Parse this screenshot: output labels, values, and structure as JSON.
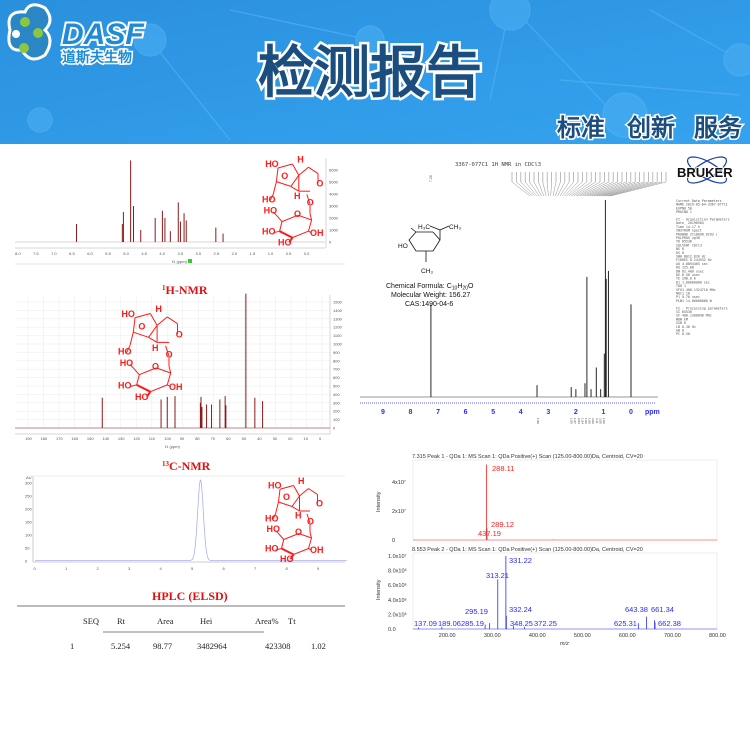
{
  "header": {
    "logo": {
      "en": "DASF",
      "cn": "道斯夫生物"
    },
    "title": "检测报告",
    "slogan": [
      "标准",
      "创新",
      "服务"
    ],
    "colors": {
      "background": "#2d97e4",
      "title": "#1b4d7e",
      "logo_green": "#8dc63f",
      "logo_blue": "#2b86c5"
    }
  },
  "structure": {
    "labels": [
      "HO",
      "H",
      "O",
      "O",
      "H",
      "HO",
      "O",
      "O",
      "HO",
      "HO",
      "HO",
      "OH"
    ],
    "color": "#ff1a1a"
  },
  "h_nmr": {
    "caption_sup": "1",
    "caption": "H-NMR",
    "x_ticks": [
      "8.0",
      "7.5",
      "7.0",
      "6.5",
      "6.0",
      "5.5",
      "5.0",
      "4.5",
      "4.0",
      "3.5",
      "3.0",
      "2.5",
      "2.0",
      "1.5",
      "1.0",
      "0.5",
      "0.0"
    ],
    "y_ticks": [
      "0",
      "1000",
      "2000",
      "3000",
      "4000",
      "5000",
      "6000"
    ],
    "x_label": "f1 (ppm)",
    "peaks": [
      [
        6.38,
        1500
      ],
      [
        5.11,
        1500
      ],
      [
        5.08,
        2500
      ],
      [
        4.88,
        6800
      ],
      [
        4.8,
        3000
      ],
      [
        4.6,
        1000
      ],
      [
        4.2,
        2000
      ],
      [
        4.0,
        2600
      ],
      [
        3.93,
        2000
      ],
      [
        3.78,
        900
      ],
      [
        3.56,
        3300
      ],
      [
        3.5,
        1700
      ],
      [
        3.4,
        2400
      ],
      [
        3.34,
        1800
      ],
      [
        2.52,
        1200
      ],
      [
        2.32,
        700
      ]
    ],
    "color": "#8b1a1a"
  },
  "c_nmr": {
    "caption_sup": "13",
    "caption": "C-NMR",
    "x_ticks": [
      "190",
      "180",
      "170",
      "160",
      "150",
      "140",
      "130",
      "120",
      "110",
      "100",
      "90",
      "80",
      "70",
      "60",
      "50",
      "40",
      "30",
      "20",
      "10",
      "0"
    ],
    "y_ticks": [
      "0",
      "100",
      "200",
      "300",
      "400",
      "500",
      "600",
      "700",
      "800",
      "900",
      "1000",
      "1100",
      "1200",
      "1300",
      "1400",
      "1500"
    ],
    "x_label": "f1 (ppm)",
    "peaks": [
      [
        142,
        360
      ],
      [
        104,
        340
      ],
      [
        100,
        370
      ],
      [
        95,
        380
      ],
      [
        78.6,
        300
      ],
      [
        78.2,
        370
      ],
      [
        77.6,
        250
      ],
      [
        74.6,
        280
      ],
      [
        71.4,
        280
      ],
      [
        66,
        340
      ],
      [
        62.6,
        380
      ],
      [
        62.1,
        270
      ],
      [
        49.2,
        1600
      ],
      [
        43.4,
        360
      ],
      [
        38.4,
        320
      ]
    ],
    "color": "#8b1a1a"
  },
  "hplc": {
    "title": "HPLC (ELSD)",
    "y_unit": "AU",
    "x_ticks": [
      "0",
      "1",
      "2",
      "3",
      "4",
      "5",
      "6",
      "7",
      "8",
      "9"
    ],
    "y_ticks": [
      "0",
      "50",
      "100",
      "150",
      "200",
      "250",
      "300"
    ],
    "peak": {
      "rt": 5.254,
      "height": 310
    },
    "color": "#aab0f0",
    "table": {
      "headers": [
        "SEQ",
        "Rt",
        "Area",
        "Hei",
        "Area%",
        "Tt"
      ],
      "rows": [
        [
          "1",
          "5.254",
          "98.77",
          "3482964",
          "423308",
          "1.02"
        ]
      ]
    }
  },
  "bruker_nmr": {
    "title": "3367-077C1 1H NMR in CDCl3",
    "brand": "BRUKER",
    "compound": {
      "formula_label": "Chemical Formula: ",
      "formula": [
        "C",
        "10",
        "H",
        "20",
        "O"
      ],
      "molecular_weight": "Molecular Weight: 156.27",
      "cas": "CAS:1490-04-6",
      "labels": {
        "h3c": "H₃C",
        "ch3_top": "CH₃",
        "ho": "HO",
        "ch3_bottom": "CH₃"
      }
    },
    "x_ticks": [
      "9",
      "8",
      "7",
      "6",
      "5",
      "4",
      "3",
      "2",
      "1",
      "0"
    ],
    "x_unit": "ppm",
    "top_peak_label": "7.26",
    "peaks": [
      [
        7.26,
        0.47
      ],
      [
        3.41,
        0.06
      ],
      [
        2.17,
        0.05
      ],
      [
        2.0,
        0.04
      ],
      [
        1.67,
        0.07
      ],
      [
        1.6,
        0.61
      ],
      [
        1.45,
        0.04
      ],
      [
        1.26,
        0.15
      ],
      [
        1.1,
        0.04
      ],
      [
        0.97,
        0.22
      ],
      [
        0.93,
        1.0
      ],
      [
        0.9,
        0.6
      ],
      [
        0.82,
        0.64
      ],
      [
        0.0,
        0.47
      ]
    ],
    "integrals": [
      "1.00",
      "1.05",
      "1.07",
      "2.03",
      "1.04",
      "1.06",
      "1.00",
      "3.06",
      "3.11",
      "3.05",
      "1.02"
    ],
    "params": [
      "Current Data Parameters",
      "NAME      2019-05-04-3367-077C1",
      "EXPNO                  50",
      "PROCNO                  1",
      "",
      "F2 - Acquisition Parameters",
      "Date_            20190504",
      "Time              14.17 h",
      "INSTRUM             spect",
      "PROBHD   Z116098_0293 (",
      "PULPROG              zg30",
      "TD                  65536",
      "SOLVENT             CDCl3",
      "NS                      8",
      "DS                      0",
      "SWH          8012.820 Hz",
      "FIDRES       0.244532 Hz",
      "AQ          4.0894465 sec",
      "RG                 125.08",
      "DW             62.400 usec",
      "DE               6.50 usec",
      "TE               298.0 K",
      "D1         1.00000000 sec",
      "TD0                     1",
      "SFO1      400.1324710 MHz",
      "NUC1                   1H",
      "P1               9.70 usec",
      "PLW1      14.00000000 W",
      "",
      "F2 - Processing parameters",
      "SI                  65536",
      "SF        400.1300090 MHz",
      "WDW                    EM",
      "SSB      0",
      "LB                0.30 Hz",
      "GB       0",
      "PC                   0.50"
    ]
  },
  "ms": {
    "x_label": "m/z",
    "y_label": "Intensity",
    "x_ticks": [
      "200.00",
      "300.00",
      "400.00",
      "500.00",
      "600.00",
      "700.00",
      "800.00"
    ],
    "top": {
      "header": "7.315 Peak 1 - QDa 1: MS Scan 1: QDa Positive(+) Scan (125.00-800.00)Da, Centroid, CV=20",
      "y_ticks": [
        "0",
        "2x10⁷",
        "4x10⁷"
      ],
      "color": "#ff2020",
      "peaks": [
        {
          "mz": 288.11,
          "i": 52000000.0,
          "label": "288.11"
        },
        {
          "mz": 289.12,
          "i": 8000000.0,
          "label": "289.12"
        },
        {
          "mz": 437.19,
          "i": 400000.0,
          "label": "437.19"
        }
      ]
    },
    "bottom": {
      "header": "8.553 Peak 2 - QDa 1: MS Scan 1: QDa Positive(+) Scan (125.00-800.00)Da, Centroid, CV=20",
      "y_ticks": [
        "0.0",
        "2.0x10⁶",
        "4.0x10⁶",
        "6.0x10⁶",
        "8.0x10⁶",
        "1.0x10⁷"
      ],
      "color": "#2a2aff",
      "peaks": [
        {
          "mz": 137.09,
          "i": 200000.0,
          "label": "137.09"
        },
        {
          "mz": 189.06,
          "i": 300000.0,
          "label": "189.06"
        },
        {
          "mz": 285.19,
          "i": 600000.0,
          "label": "285.19"
        },
        {
          "mz": 295.19,
          "i": 800000.0,
          "label": "295.19"
        },
        {
          "mz": 313.21,
          "i": 6800000.0,
          "label": "313.21"
        },
        {
          "mz": 331.22,
          "i": 10000000.0,
          "label": "331.22"
        },
        {
          "mz": 332.24,
          "i": 1800000.0,
          "label": "332.24"
        },
        {
          "mz": 348.25,
          "i": 400000.0,
          "label": "348.25"
        },
        {
          "mz": 372.25,
          "i": 300000.0,
          "label": "372.25"
        },
        {
          "mz": 625.31,
          "i": 800000.0,
          "label": "625.31"
        },
        {
          "mz": 643.38,
          "i": 1700000.0,
          "label": "643.38"
        },
        {
          "mz": 661.34,
          "i": 1200000.0,
          "label": "661.34"
        },
        {
          "mz": 662.38,
          "i": 900000.0,
          "label": "662.38"
        }
      ]
    }
  }
}
